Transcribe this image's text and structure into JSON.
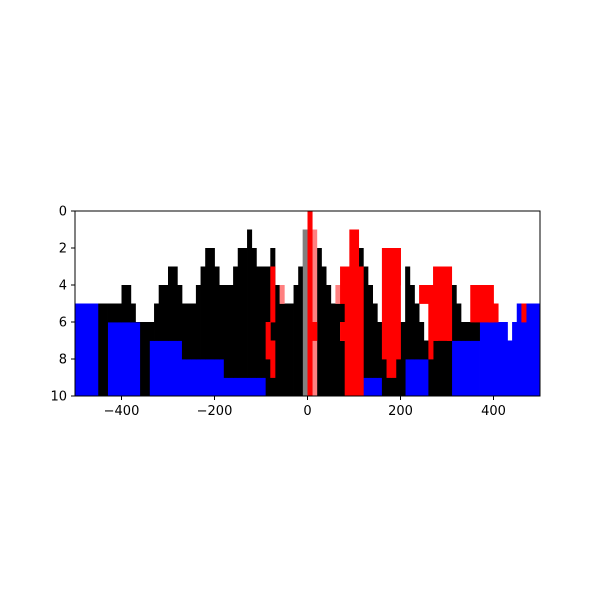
{
  "chart_data": {
    "type": "heatmap",
    "title": "",
    "xlabel": "",
    "ylabel": "",
    "xlim": [
      -500,
      500
    ],
    "ylim": [
      10,
      0
    ],
    "y_inverted": true,
    "grid": false,
    "x_ticks": [
      -400,
      -200,
      0,
      200,
      400
    ],
    "y_ticks": [
      0,
      2,
      4,
      6,
      8,
      10
    ],
    "x_tick_labels": [
      "−400",
      "−200",
      "0",
      "200",
      "400"
    ],
    "y_tick_labels": [
      "0",
      "2",
      "4",
      "6",
      "8",
      "10"
    ],
    "cell_width": 10,
    "cell_height": 1,
    "colors": {
      "blue": "#0000ff",
      "black": "#000000",
      "red": "#ff0000",
      "gray": "#808080",
      "pink": "#ff8080",
      "white": "#ffffff"
    },
    "blue_region": {
      "color": "blue",
      "columns": [
        {
          "x": [
            -500,
            -450
          ],
          "top": 5
        },
        {
          "x": [
            -450,
            -440
          ],
          "top": 6
        },
        {
          "x": [
            -440,
            -430
          ],
          "top": 7
        },
        {
          "x": [
            -430,
            -350
          ],
          "top": 6
        },
        {
          "x": [
            -350,
            -270
          ],
          "top": 7
        },
        {
          "x": [
            -270,
            -180
          ],
          "top": 8
        },
        {
          "x": [
            -180,
            -90
          ],
          "top": 9
        },
        {
          "x": [
            100,
            190
          ],
          "top": 9
        },
        {
          "x": [
            190,
            280
          ],
          "top": 8
        },
        {
          "x": [
            280,
            370
          ],
          "top": 7
        },
        {
          "x": [
            370,
            430
          ],
          "top": 6
        },
        {
          "x": [
            430,
            440
          ],
          "top": 7
        },
        {
          "x": [
            440,
            450
          ],
          "top": 6
        },
        {
          "x": [
            450,
            500
          ],
          "top": 5
        }
      ]
    },
    "black_region": {
      "color": "black",
      "columns": [
        {
          "x": [
            -450,
            -430
          ],
          "top": 5
        },
        {
          "x": [
            -410,
            -400
          ],
          "top": 5
        },
        {
          "x": [
            -400,
            -380
          ],
          "top": 4
        },
        {
          "x": [
            -380,
            -370
          ],
          "top": 5
        },
        {
          "x": [
            -370,
            -360
          ],
          "top": 6
        },
        {
          "x": [
            -340,
            -330
          ],
          "top": 6
        },
        {
          "x": [
            -330,
            -320
          ],
          "top": 5
        },
        {
          "x": [
            -320,
            -300
          ],
          "top": 4
        },
        {
          "x": [
            -300,
            -280
          ],
          "top": 3
        },
        {
          "x": [
            -280,
            -270
          ],
          "top": 4
        },
        {
          "x": [
            -270,
            -260
          ],
          "top": 5
        },
        {
          "x": [
            -250,
            -240
          ],
          "top": 5
        },
        {
          "x": [
            -240,
            -230
          ],
          "top": 4
        },
        {
          "x": [
            -230,
            -220
          ],
          "top": 3
        },
        {
          "x": [
            -220,
            -200
          ],
          "top": 2
        },
        {
          "x": [
            -200,
            -190
          ],
          "top": 3
        },
        {
          "x": [
            -190,
            -180
          ],
          "top": 4
        },
        {
          "x": [
            -170,
            -160
          ],
          "top": 4
        },
        {
          "x": [
            -160,
            -150
          ],
          "top": 3
        },
        {
          "x": [
            -150,
            -130
          ],
          "top": 2
        },
        {
          "x": [
            -130,
            -120
          ],
          "top": 1
        },
        {
          "x": [
            -120,
            -110
          ],
          "top": 2
        },
        {
          "x": [
            -110,
            -100
          ],
          "top": 3
        },
        {
          "x": [
            -90,
            -80
          ],
          "top": 3
        },
        {
          "x": [
            -80,
            -70
          ],
          "top": 2
        },
        {
          "x": [
            -70,
            -60
          ],
          "top": 4
        },
        {
          "x": [
            -60,
            -50
          ],
          "top": 5
        },
        {
          "x": [
            -40,
            -30
          ],
          "top": 5
        },
        {
          "x": [
            -30,
            -20
          ],
          "top": 4
        },
        {
          "x": [
            -20,
            -10
          ],
          "top": 3
        },
        {
          "x": [
            -10,
            0
          ],
          "top": 1
        },
        {
          "x": [
            20,
            30
          ],
          "top": 2
        },
        {
          "x": [
            30,
            40
          ],
          "top": 3
        },
        {
          "x": [
            40,
            50
          ],
          "top": 4
        },
        {
          "x": [
            50,
            60
          ],
          "top": 5
        },
        {
          "x": [
            70,
            80
          ],
          "top": 5
        },
        {
          "x": [
            110,
            120
          ],
          "top": 2
        },
        {
          "x": [
            120,
            130
          ],
          "top": 3
        },
        {
          "x": [
            130,
            140
          ],
          "top": 4
        },
        {
          "x": [
            140,
            150
          ],
          "top": 5
        },
        {
          "x": [
            150,
            160
          ],
          "top": 6
        },
        {
          "x": [
            210,
            220
          ],
          "top": 3
        },
        {
          "x": [
            220,
            230
          ],
          "top": 4
        },
        {
          "x": [
            230,
            240
          ],
          "top": 5
        },
        {
          "x": [
            240,
            250
          ],
          "top": 6
        },
        {
          "x": [
            250,
            260
          ],
          "top": 7
        },
        {
          "x": [
            310,
            320
          ],
          "top": 4
        },
        {
          "x": [
            320,
            330
          ],
          "top": 5
        },
        {
          "x": [
            330,
            340
          ],
          "top": 6
        },
        {
          "x": [
            340,
            350
          ],
          "top": 6
        }
      ]
    },
    "red_region": {
      "color": "red",
      "cells": [
        {
          "x": [
            0,
            10
          ],
          "y": [
            0,
            10
          ]
        },
        {
          "x": [
            -80,
            -70
          ],
          "y": [
            3,
            6
          ]
        },
        {
          "x": [
            -90,
            -80
          ],
          "y": [
            6,
            8
          ]
        },
        {
          "x": [
            -80,
            -70
          ],
          "y": [
            7,
            9
          ]
        },
        {
          "x": [
            0,
            20
          ],
          "y": [
            6,
            7
          ]
        },
        {
          "x": [
            70,
            80
          ],
          "y": [
            3,
            5
          ]
        },
        {
          "x": [
            70,
            80
          ],
          "y": [
            6,
            7
          ]
        },
        {
          "x": [
            80,
            100
          ],
          "y": [
            3,
            10
          ]
        },
        {
          "x": [
            90,
            110
          ],
          "y": [
            1,
            3
          ]
        },
        {
          "x": [
            100,
            120
          ],
          "y": [
            3,
            10
          ]
        },
        {
          "x": [
            100,
            110
          ],
          "y": [
            8,
            9
          ]
        },
        {
          "x": [
            160,
            200
          ],
          "y": [
            2,
            8
          ]
        },
        {
          "x": [
            170,
            180
          ],
          "y": [
            8,
            9
          ]
        },
        {
          "x": [
            180,
            190
          ],
          "y": [
            8,
            9
          ]
        },
        {
          "x": [
            190,
            200
          ],
          "y": [
            2,
            4
          ]
        },
        {
          "x": [
            240,
            260
          ],
          "y": [
            4,
            5
          ]
        },
        {
          "x": [
            260,
            280
          ],
          "y": [
            4,
            7
          ]
        },
        {
          "x": [
            260,
            270
          ],
          "y": [
            5,
            8
          ]
        },
        {
          "x": [
            270,
            310
          ],
          "y": [
            3,
            7
          ]
        },
        {
          "x": [
            300,
            310
          ],
          "y": [
            5,
            7
          ]
        },
        {
          "x": [
            350,
            360
          ],
          "y": [
            4,
            6
          ]
        },
        {
          "x": [
            360,
            400
          ],
          "y": [
            4,
            6
          ]
        },
        {
          "x": [
            390,
            410
          ],
          "y": [
            5,
            6
          ]
        },
        {
          "x": [
            460,
            470
          ],
          "y": [
            5,
            6
          ]
        }
      ]
    },
    "gray_region": {
      "color": "gray",
      "cells": [
        {
          "x": [
            -10,
            0
          ],
          "y": [
            1,
            10
          ]
        }
      ]
    },
    "pink_region": {
      "color": "pink",
      "cells": [
        {
          "x": [
            10,
            20
          ],
          "y": [
            1,
            10
          ]
        },
        {
          "x": [
            60,
            70
          ],
          "y": [
            4,
            5
          ]
        },
        {
          "x": [
            70,
            80
          ],
          "y": [
            6,
            7
          ]
        },
        {
          "x": [
            -60,
            -50
          ],
          "y": [
            4,
            5
          ]
        }
      ]
    }
  }
}
